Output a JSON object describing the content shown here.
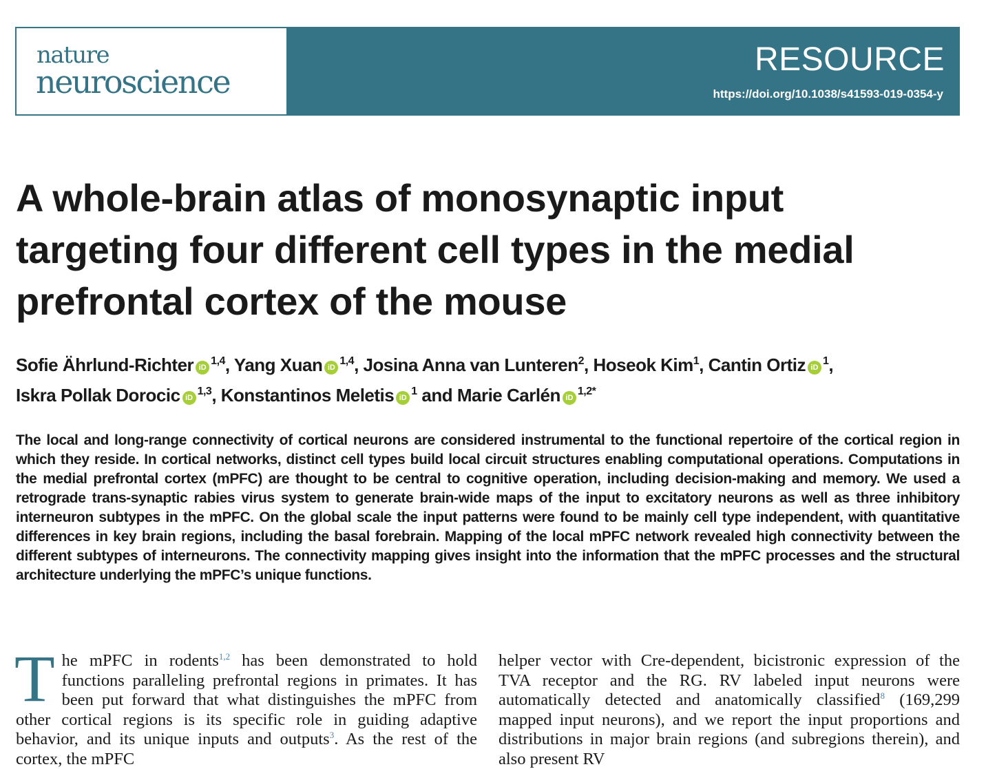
{
  "journal": {
    "logo_line1": "nature",
    "logo_line2": "neuroscience",
    "section": "RESOURCE",
    "doi": "https://doi.org/10.1038/s41593-019-0354-y"
  },
  "title_lines": [
    "A whole-brain atlas of monosynaptic input",
    "targeting four different cell types in the medial",
    "prefrontal cortex of the mouse"
  ],
  "authors": [
    {
      "name": "Sofie Ährlund-Richter",
      "orcid": true,
      "aff": "1,4",
      "sep": ", "
    },
    {
      "name": "Yang Xuan",
      "orcid": true,
      "aff": "1,4",
      "sep": ", "
    },
    {
      "name": "Josina Anna van Lunteren",
      "orcid": false,
      "aff": "2",
      "sep": ", "
    },
    {
      "name": "Hoseok Kim",
      "orcid": false,
      "aff": "1",
      "sep": ", "
    },
    {
      "name": "Cantin Ortiz",
      "orcid": true,
      "aff": "1",
      "sep": ","
    },
    {
      "name": "Iskra Pollak Dorocic",
      "orcid": true,
      "aff": "1,3",
      "sep": ", "
    },
    {
      "name": "Konstantinos Meletis",
      "orcid": true,
      "aff": "1",
      "sep": " and "
    },
    {
      "name": "Marie Carlén",
      "orcid": true,
      "aff": "1,2*",
      "sep": ""
    }
  ],
  "orcid_glyph": "iD",
  "abstract": "The local and long-range connectivity of cortical neurons are considered instrumental to the functional repertoire of the cortical region in which they reside. In cortical networks, distinct cell types build local circuit structures enabling computational operations. Computations in the medial prefrontal cortex (mPFC) are thought to be central to cognitive operation, including decision-making and memory. We used a retrograde trans-synaptic rabies virus system to generate brain-wide maps of the input to excitatory neurons as well as three inhibitory interneuron subtypes in the mPFC. On the global scale the input patterns were found to be mainly cell type independent, with quantitative differences in key brain regions, including the basal forebrain. Mapping of the local mPFC network revealed high connectivity between the different subtypes of interneurons. The connectivity mapping gives insight into the information that the mPFC processes and the structural architecture underlying the mPFC’s unique functions.",
  "body_left": {
    "dropcap": "T",
    "t1": "he mPFC in rodents",
    "r1": "1,2",
    "t2": " has been demonstrated to hold functions paralleling prefrontal regions in primates. It has been put forward that what distinguishes the mPFC from other cortical regions is its specific role in guiding adaptive behavior, and its unique inputs and outputs",
    "r2": "3",
    "t3": ". As the rest of the cortex, the mPFC"
  },
  "body_right": {
    "t1": "helper vector with Cre-dependent, bicistronic expression of the TVA receptor and the RG. RV labeled input neurons were automatically detected and anatomically classified",
    "r1": "8",
    "t2": " (169,299 mapped input neurons), and we report the input proportions and distributions in major brain regions (and subregions therein), and also present RV"
  },
  "colors": {
    "brand": "#357486",
    "orcid": "#a6ce39",
    "ref_link": "#4a86b0"
  }
}
